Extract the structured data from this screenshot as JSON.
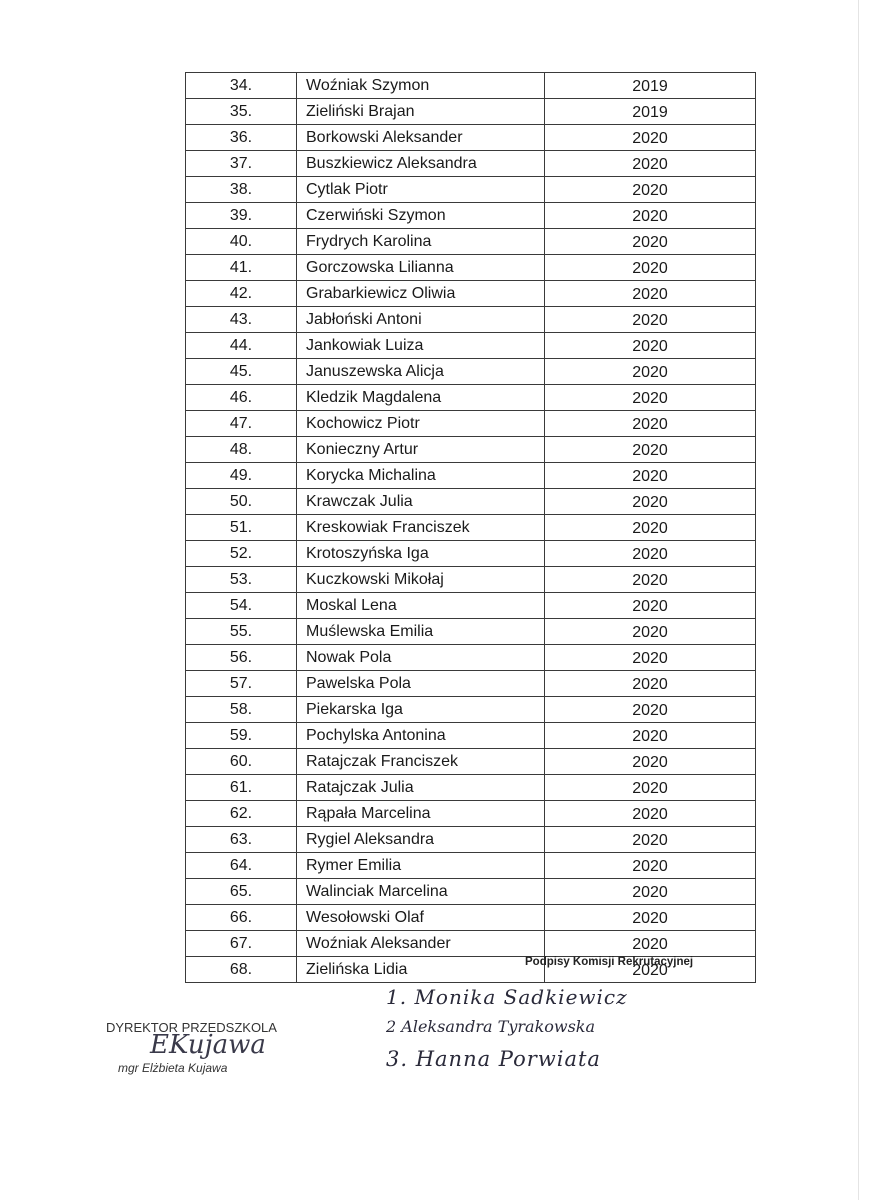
{
  "table": {
    "rows": [
      [
        "34.",
        "Woźniak Szymon",
        "2019"
      ],
      [
        "35.",
        "Zieliński Brajan",
        "2019"
      ],
      [
        "36.",
        "Borkowski Aleksander",
        "2020"
      ],
      [
        "37.",
        "Buszkiewicz Aleksandra",
        "2020"
      ],
      [
        "38.",
        "Cytlak Piotr",
        "2020"
      ],
      [
        "39.",
        "Czerwiński Szymon",
        "2020"
      ],
      [
        "40.",
        "Frydrych Karolina",
        "2020"
      ],
      [
        "41.",
        "Gorczowska Lilianna",
        "2020"
      ],
      [
        "42.",
        "Grabarkiewicz Oliwia",
        "2020"
      ],
      [
        "43.",
        "Jabłoński Antoni",
        "2020"
      ],
      [
        "44.",
        "Jankowiak Luiza",
        "2020"
      ],
      [
        "45.",
        "Januszewska Alicja",
        "2020"
      ],
      [
        "46.",
        "Kledzik Magdalena",
        "2020"
      ],
      [
        "47.",
        "Kochowicz Piotr",
        "2020"
      ],
      [
        "48.",
        "Konieczny Artur",
        "2020"
      ],
      [
        "49.",
        "Korycka Michalina",
        "2020"
      ],
      [
        "50.",
        "Krawczak Julia",
        "2020"
      ],
      [
        "51.",
        "Kreskowiak Franciszek",
        "2020"
      ],
      [
        "52.",
        "Krotoszyńska Iga",
        "2020"
      ],
      [
        "53.",
        "Kuczkowski Mikołaj",
        "2020"
      ],
      [
        "54.",
        "Moskal Lena",
        "2020"
      ],
      [
        "55.",
        "Muślewska Emilia",
        "2020"
      ],
      [
        "56.",
        "Nowak Pola",
        "2020"
      ],
      [
        "57.",
        "Pawelska Pola",
        "2020"
      ],
      [
        "58.",
        "Piekarska Iga",
        "2020"
      ],
      [
        "59.",
        "Pochylska Antonina",
        "2020"
      ],
      [
        "60.",
        "Ratajczak Franciszek",
        "2020"
      ],
      [
        "61.",
        "Ratajczak Julia",
        "2020"
      ],
      [
        "62.",
        "Rąpała Marcelina",
        "2020"
      ],
      [
        "63.",
        "Rygiel Aleksandra",
        "2020"
      ],
      [
        "64.",
        "Rymer Emilia",
        "2020"
      ],
      [
        "65.",
        "Walinciak Marcelina",
        "2020"
      ],
      [
        "66.",
        "Wesołowski Olaf",
        "2020"
      ],
      [
        "67.",
        "Woźniak Aleksander",
        "2020"
      ],
      [
        "68.",
        "Zielińska Lidia",
        "2020"
      ]
    ]
  },
  "signatures": {
    "commission_label": "Podpisy Komisji Rekrutacyjnej",
    "members": [
      "1. Monika Sadkiewicz",
      "2 Aleksandra Tyrakowska",
      "3. Hanna Porwiata"
    ],
    "director_title": "DYREKTOR PRZEDSZKOLA",
    "director_signature": "EKujawa",
    "director_name": "mgr Elżbieta Kujawa"
  }
}
